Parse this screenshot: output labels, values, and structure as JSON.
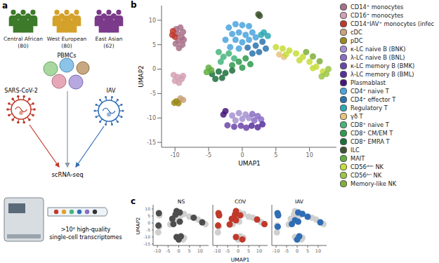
{
  "panel_labels": [
    "a",
    "b",
    "c"
  ],
  "illustration": {
    "populations": [
      {
        "name": "Central African",
        "count": "(80)",
        "color": "#3d7a2a"
      },
      {
        "name": "West European",
        "count": "(80)",
        "color": "#d4a22a"
      },
      {
        "name": "East Asian",
        "count": "(62)",
        "color": "#7b3a8a"
      }
    ],
    "cells_label": "PBMCs",
    "viruses": [
      {
        "name": "SARS-CoV-2",
        "color": "#c0392b"
      },
      {
        "name": "IAV",
        "color": "#2f6db5"
      }
    ],
    "method": "scRNA-seq",
    "output": [
      ">10⁶ high-quality",
      "single-cell transcriptomes"
    ]
  },
  "chart_data": [
    {
      "type": "scatter",
      "x_label": "UMAP1",
      "y_label": "UMAP2",
      "xlim": [
        -12,
        14
      ],
      "ylim": [
        -16,
        13
      ],
      "xticks": [
        -10,
        -5,
        0,
        5,
        10
      ],
      "yticks": [
        -15,
        -10,
        -5,
        0,
        5,
        10
      ],
      "legend": "right",
      "series": [
        {
          "name": "CD14⁺ monocytes",
          "color": "#a8708a",
          "x": [
            -9.8,
            -9.2,
            -8.8,
            -9.6,
            -9.0,
            -9.5,
            -8.9,
            -9.4,
            -9.9,
            -8.7
          ],
          "y": [
            8.2,
            8.5,
            7.6,
            7.2,
            6.5,
            5.8,
            5.0,
            4.3,
            5.2,
            6.0
          ]
        },
        {
          "name": "CD16⁺ monocytes",
          "color": "#d4a0b4",
          "x": [
            -10.2,
            -9.6,
            -9.0,
            -10.0,
            -9.4,
            -8.8
          ],
          "y": [
            -1.2,
            -1.6,
            -2.0,
            -2.4,
            -2.8,
            -1.4
          ]
        },
        {
          "name": "CD14⁺IAV⁺ monocytes (infec",
          "color": "#c0392b",
          "x": [
            -10.3,
            -10.4,
            -10.0
          ],
          "y": [
            7.8,
            7.0,
            6.6
          ]
        },
        {
          "name": "cDC",
          "color": "#c9a27a",
          "x": [
            -9.2,
            -8.8
          ],
          "y": [
            -6.0,
            -6.3
          ]
        },
        {
          "name": "pDC",
          "color": "#9c8a1c",
          "x": [
            -9.8,
            -9.5,
            -10.1
          ],
          "y": [
            -6.6,
            -7.0,
            -6.9
          ]
        },
        {
          "name": "κ-LC naive B (BNK)",
          "color": "#a48fd0",
          "x": [
            -1.5,
            -0.5,
            0.5,
            -1,
            0,
            1
          ],
          "y": [
            -9.5,
            -9.0,
            -9.3,
            -10.5,
            -10.2,
            -10.0
          ]
        },
        {
          "name": "λ-LC naive B (BNL)",
          "color": "#8a6cc4",
          "x": [
            1.5,
            2.3,
            1.8,
            2.8
          ],
          "y": [
            -9.2,
            -9.6,
            -10.5,
            -10.3
          ]
        },
        {
          "name": "κ-LC memory B (BMK)",
          "color": "#6b45a8",
          "x": [
            -2.2,
            -1.2,
            -0.2,
            0.6
          ],
          "y": [
            -11.5,
            -11.8,
            -11.6,
            -12.0
          ]
        },
        {
          "name": "λ-LC memory B (BML)",
          "color": "#57309a",
          "x": [
            1.4,
            2.3,
            3.0
          ],
          "y": [
            -11.6,
            -11.9,
            -11.3
          ]
        },
        {
          "name": "Plasmablast",
          "color": "#45167a",
          "x": [
            -2.8,
            -2.5
          ],
          "y": [
            -9.3,
            -8.6
          ]
        },
        {
          "name": "CD4⁺ naive T",
          "color": "#4aa3dc",
          "x": [
            -2,
            -1,
            0,
            1,
            -1.5,
            -0.5,
            0.5,
            1.5,
            -2.5,
            -1,
            0,
            1,
            2,
            -1.8,
            -0.5
          ],
          "y": [
            8.5,
            9.2,
            9,
            8.8,
            7.2,
            7.5,
            7,
            7.5,
            6,
            6,
            5.5,
            6,
            6.5,
            4.5,
            4.2
          ]
        },
        {
          "name": "CD4⁺ effector T",
          "color": "#2a73ad",
          "x": [
            0.8,
            2,
            3,
            2.5,
            3.5,
            1.5
          ],
          "y": [
            4.4,
            4.8,
            5.6,
            3.5,
            4.2,
            3.2
          ]
        },
        {
          "name": "Regulatory T",
          "color": "#2fa8b4",
          "x": [
            3.2,
            3.8,
            2.8
          ],
          "y": [
            7.5,
            6.8,
            7.0
          ]
        },
        {
          "name": "γδ T",
          "color": "#e8c27a",
          "x": [
            5.5,
            6.2
          ],
          "y": [
            3.0,
            2.5
          ]
        },
        {
          "name": "CD8⁺ naive T",
          "color": "#45b57c",
          "x": [
            -3.5,
            -2.8,
            -2,
            -3.2,
            -1.2
          ],
          "y": [
            3.5,
            2.5,
            3.2,
            1.5,
            2.2
          ]
        },
        {
          "name": "CD8⁺ CM/EM T",
          "color": "#2e9a4e",
          "x": [
            -0.5,
            0.5,
            1.2,
            -1.5,
            0
          ],
          "y": [
            1.5,
            2.2,
            1.0,
            0.8,
            0.3
          ]
        },
        {
          "name": "CD8⁺ EMRA T",
          "color": "#1d703c",
          "x": [
            -4.5,
            -3.5,
            -2.5,
            -4,
            -3,
            -1.5
          ],
          "y": [
            -1,
            -0.5,
            -0.8,
            -2,
            -1.8,
            -0.3
          ]
        },
        {
          "name": "ILC",
          "color": "#3d5530",
          "x": [
            2.4,
            2.6
          ],
          "y": [
            11.2,
            10.9
          ]
        },
        {
          "name": "MAIT",
          "color": "#5fae3e",
          "x": [
            -5,
            -4.6,
            -5.3
          ],
          "y": [
            0.3,
            -0.2,
            -0.6
          ]
        },
        {
          "name": "CD56ᵈⁱᵐ NK",
          "color": "#c6dc3a",
          "x": [
            5,
            6,
            7,
            8,
            9,
            10,
            11,
            12,
            6.5,
            8.5,
            10.5
          ],
          "y": [
            4.5,
            4.2,
            3.8,
            3.2,
            2.5,
            1.5,
            0.5,
            -0.5,
            3,
            1.8,
            0.2
          ]
        },
        {
          "name": "CD56ᵇʳⁱ NK",
          "color": "#9cc646",
          "x": [
            11.8,
            12.5,
            12.8
          ],
          "y": [
            -1.5,
            -1.0,
            0
          ]
        },
        {
          "name": "Memory-like NK",
          "color": "#7fae3a",
          "x": [
            9.5,
            10.5,
            11.5
          ],
          "y": [
            3.5,
            2.6,
            1.6
          ]
        }
      ]
    },
    {
      "type": "scatter",
      "x_label": "UMAP1",
      "y_label": "UMAP2",
      "xlim": [
        -12,
        14
      ],
      "ylim": [
        -16,
        13
      ],
      "xticks": [
        -10,
        -5,
        0,
        5,
        10
      ],
      "yticks": [
        -15,
        -10,
        -5,
        0,
        5,
        10
      ],
      "background": {
        "color": "#cfcfcf",
        "x": [
          -9.3,
          -9,
          -9.5,
          -9.2,
          -9.6,
          -1,
          1,
          2.5,
          0,
          2,
          -1,
          0.5,
          -1.5,
          1,
          2.5,
          -3,
          -1,
          0.5,
          -4,
          -2.5,
          5,
          7,
          9,
          11,
          12.5
        ],
        "y": [
          7,
          5.5,
          -1.8,
          -2.6,
          -6.7,
          -10,
          -9.5,
          -10.5,
          -11.8,
          -11.7,
          8.5,
          7.5,
          6,
          5.5,
          6.5,
          3,
          2,
          1,
          -1,
          -0.8,
          4.5,
          3.8,
          2.5,
          0.5,
          -0.8
        ]
      },
      "facets": [
        {
          "title": "NS",
          "color": "#4d4d4d",
          "x": [
            -9.3,
            -9.5,
            -1,
            1,
            0,
            -1,
            0.5,
            -1.5,
            -3,
            0.5,
            -2.5,
            7,
            11
          ],
          "y": [
            7,
            -1.8,
            -10,
            -9.5,
            -11.8,
            8.5,
            7.5,
            6,
            3,
            1,
            -0.8,
            3.8,
            0.5
          ]
        },
        {
          "title": "COV",
          "color": "#c0392b",
          "x": [
            -9.3,
            -9,
            -9.5,
            -1,
            2,
            -1,
            -1.5,
            1,
            -3,
            -1,
            -4,
            9,
            12.5
          ],
          "y": [
            7,
            5.5,
            -1.8,
            -10,
            -11.7,
            8.5,
            6,
            5.5,
            3,
            2,
            -1,
            2.5,
            -0.8
          ]
        },
        {
          "title": "IAV",
          "color": "#2f6db5",
          "x": [
            -9.3,
            -9,
            -9.2,
            1,
            0,
            0.5,
            2.5,
            -1,
            0.5,
            -2.5,
            5,
            11
          ],
          "y": [
            7,
            5.5,
            -2.6,
            -9.5,
            -11.8,
            7.5,
            6.5,
            2,
            1,
            -0.8,
            4.5,
            0.5
          ]
        }
      ]
    }
  ]
}
